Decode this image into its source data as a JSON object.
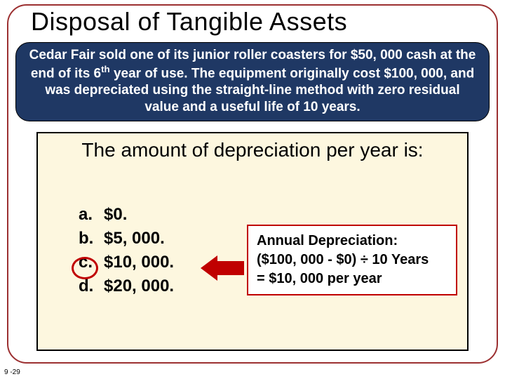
{
  "slide": {
    "title": "Disposal of Tangible Assets",
    "footer": "9 -29",
    "border_color": "#9c3031",
    "background_color": "#ffffff"
  },
  "scenario": {
    "text_html": "Cedar Fair sold one of its junior roller coasters for $50, 000 cash at the end of its 6<sup>th</sup> year of use. The equipment originally cost $100, 000, and was depreciated using the straight-line method with zero residual value and a useful life of 10 years.",
    "text_plain": "Cedar Fair sold one of its junior roller coasters for $50, 000 cash at the end of its 6th year of use. The equipment originally cost $100, 000, and was depreciated using the straight-line method with zero residual value and a useful life of 10 years.",
    "background_color": "#1f3864",
    "text_color": "#ffffff",
    "font_size": 19
  },
  "question": {
    "title": "The amount of depreciation per year is:",
    "box_background": "#fdf7df",
    "box_border_color": "#000000",
    "title_fontsize": 28,
    "options": [
      {
        "letter": "a.",
        "value": "$0."
      },
      {
        "letter": "b.",
        "value": "$5, 000."
      },
      {
        "letter": "c.",
        "value": "$10, 000."
      },
      {
        "letter": "d.",
        "value": "$20, 000."
      }
    ],
    "option_fontsize": 24,
    "correct_index": 2,
    "circle_color": "#c00000"
  },
  "annotation": {
    "line1": "Annual Depreciation:",
    "line2": "($100, 000 - $0) ÷ 10 Years",
    "line3": "= $10, 000 per year",
    "border_color": "#c00000",
    "background_color": "#ffffff",
    "font_size": 20,
    "arrow_color": "#c00000"
  }
}
